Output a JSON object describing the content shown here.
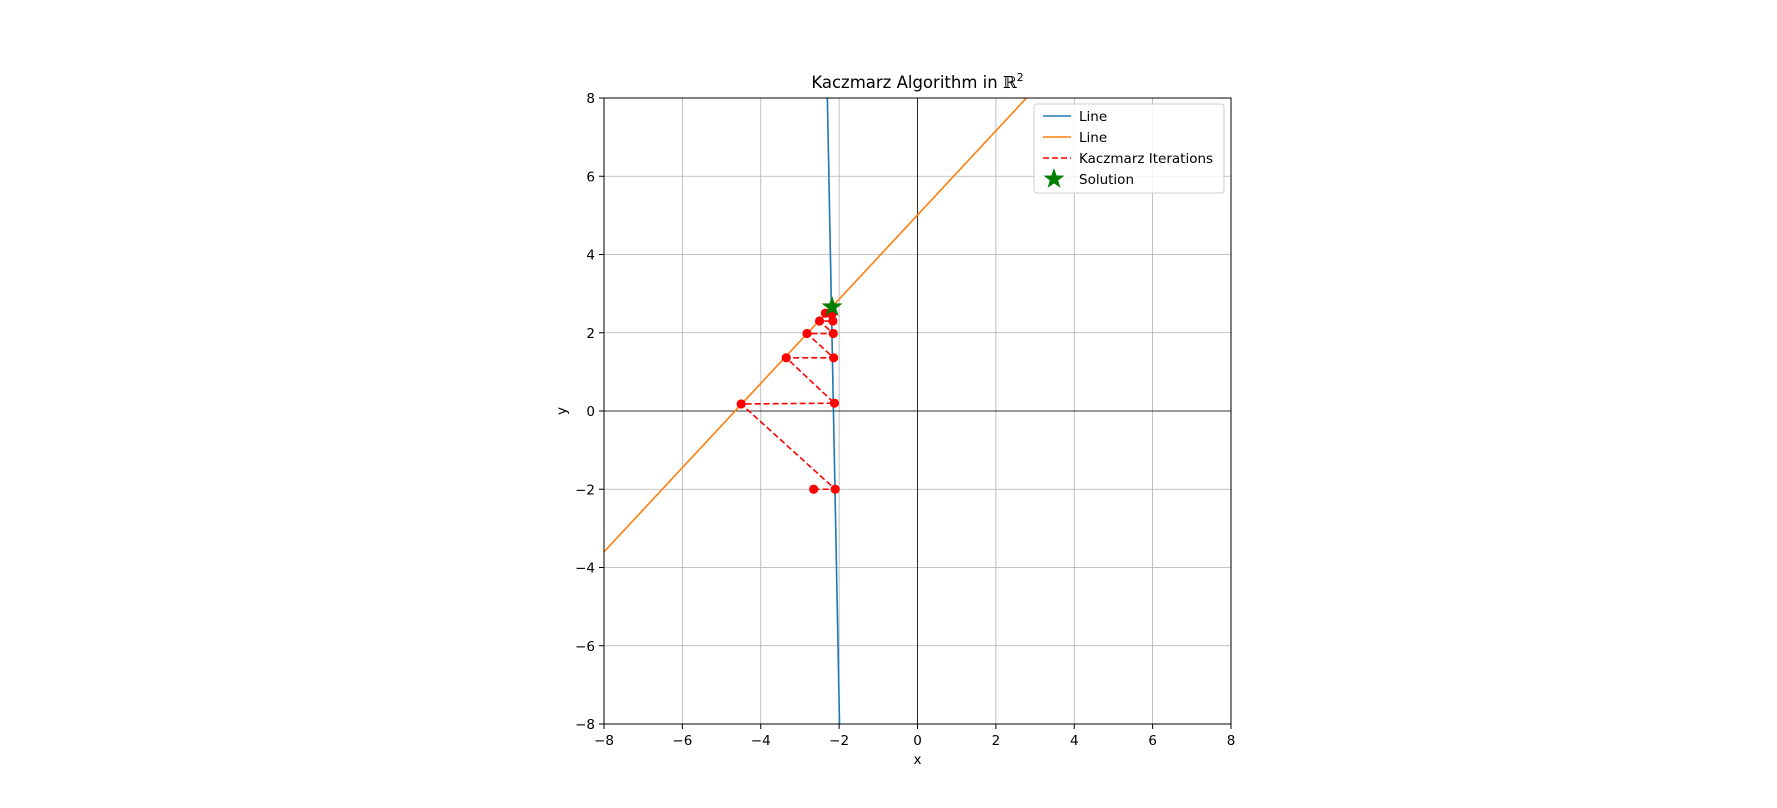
{
  "chart_data": {
    "type": "line",
    "title": "Kaczmarz Algorithm in ",
    "title_symbol": "ℝ",
    "title_superscript": "2",
    "xlabel": "x",
    "ylabel": "y",
    "xlim": [
      -8,
      8
    ],
    "ylim": [
      -8,
      8
    ],
    "xticks": [
      -8,
      -6,
      -4,
      -2,
      0,
      2,
      4,
      6,
      8
    ],
    "yticks": [
      -8,
      -6,
      -4,
      -2,
      0,
      2,
      4,
      6,
      8
    ],
    "xtick_labels": [
      "−8",
      "−6",
      "−4",
      "−2",
      "0",
      "2",
      "4",
      "6",
      "8"
    ],
    "ytick_labels": [
      "−8",
      "−6",
      "−4",
      "−2",
      "0",
      "2",
      "4",
      "6",
      "8"
    ],
    "grid": true,
    "zero_axes_lines": true,
    "legend_position": "top-right",
    "series": [
      {
        "name": "Line",
        "kind": "line",
        "color": "#1f77b4",
        "x": [
          -2.3,
          -1.99
        ],
        "y": [
          8,
          -8
        ]
      },
      {
        "name": "Line",
        "kind": "line",
        "color": "#ff7f0e",
        "x": [
          -8,
          2.78
        ],
        "y": [
          -3.6,
          8
        ]
      },
      {
        "name": "Kaczmarz Iterations",
        "kind": "dashed-line-markers",
        "color": "#ff0000",
        "x": [
          -2.65,
          -2.1,
          -4.5,
          -2.12,
          -3.35,
          -2.14,
          -2.82,
          -2.15,
          -2.5,
          -2.16,
          -2.35,
          -2.17
        ],
        "y": [
          -2.0,
          -2.0,
          0.18,
          0.2,
          1.36,
          1.36,
          1.98,
          1.98,
          2.3,
          2.3,
          2.5,
          2.5
        ]
      },
      {
        "name": "Solution",
        "kind": "marker-star",
        "color": "#008000",
        "x": [
          -2.18
        ],
        "y": [
          2.66
        ]
      }
    ]
  }
}
